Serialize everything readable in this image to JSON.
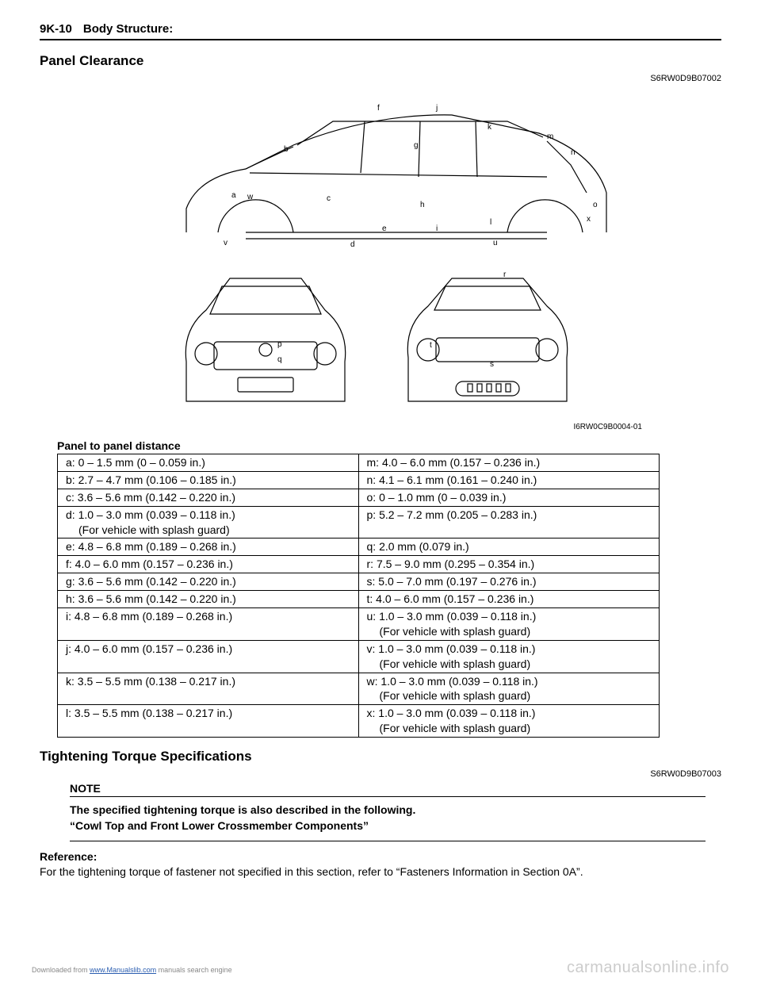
{
  "header": {
    "page_code": "9K-10",
    "section": "Body Structure:"
  },
  "section_title": "Panel Clearance",
  "ref_code_1": "S6RW0D9B07002",
  "diagram_id": "I6RW0C9B0004-01",
  "diagram_labels": {
    "side": [
      "a",
      "b",
      "c",
      "d",
      "e",
      "f",
      "g",
      "h",
      "i",
      "j",
      "k",
      "l",
      "m",
      "n",
      "o",
      "u",
      "v",
      "w",
      "x"
    ],
    "front": [
      "p",
      "q"
    ],
    "rear": [
      "r",
      "s",
      "t"
    ]
  },
  "panel_table": {
    "title": "Panel to panel distance",
    "rows": [
      {
        "left": "a: 0 – 1.5 mm (0 – 0.059 in.)",
        "right": "m: 4.0 – 6.0 mm (0.157 – 0.236 in.)"
      },
      {
        "left": "b: 2.7 – 4.7 mm (0.106 – 0.185 in.)",
        "right": "n: 4.1 – 6.1 mm (0.161 – 0.240 in.)"
      },
      {
        "left": "c: 3.6 – 5.6 mm (0.142 – 0.220 in.)",
        "right": "o: 0 – 1.0 mm (0 – 0.039 in.)"
      },
      {
        "left": "d: 1.0 – 3.0 mm (0.039 – 0.118 in.)\n(For vehicle with splash guard)",
        "right": "p: 5.2 – 7.2 mm (0.205 – 0.283 in.)"
      },
      {
        "left": "e: 4.8 – 6.8 mm (0.189 – 0.268 in.)",
        "right": "q: 2.0 mm (0.079 in.)"
      },
      {
        "left": "f: 4.0 – 6.0 mm (0.157 – 0.236 in.)",
        "right": "r: 7.5 – 9.0 mm (0.295 – 0.354 in.)"
      },
      {
        "left": "g: 3.6 – 5.6 mm (0.142 – 0.220 in.)",
        "right": "s: 5.0 – 7.0 mm (0.197 – 0.276 in.)"
      },
      {
        "left": "h: 3.6 – 5.6 mm (0.142 – 0.220 in.)",
        "right": "t: 4.0 – 6.0 mm (0.157 – 0.236 in.)"
      },
      {
        "left": "i: 4.8 – 6.8 mm (0.189 – 0.268 in.)",
        "right": "u: 1.0 – 3.0 mm (0.039 – 0.118 in.)\n(For vehicle with splash guard)"
      },
      {
        "left": "j: 4.0 – 6.0 mm (0.157 – 0.236 in.)",
        "right": "v: 1.0 – 3.0 mm (0.039 – 0.118 in.)\n(For vehicle with splash guard)"
      },
      {
        "left": "k: 3.5 – 5.5 mm (0.138 – 0.217 in.)",
        "right": "w: 1.0 – 3.0 mm (0.039 – 0.118 in.)\n(For vehicle with splash guard)"
      },
      {
        "left": "l: 3.5 – 5.5 mm (0.138 – 0.217 in.)",
        "right": "x: 1.0 – 3.0 mm (0.039 – 0.118 in.)\n(For vehicle with splash guard)"
      }
    ]
  },
  "torque": {
    "title": "Tightening Torque Specifications",
    "code": "S6RW0D9B07003",
    "note_head": "NOTE",
    "note_line1": "The specified tightening torque is also described in the following.",
    "note_line2": "“Cowl Top and Front Lower Crossmember Components”"
  },
  "reference": {
    "head": "Reference:",
    "text": "For the tightening torque of fastener not specified in this section, refer to “Fasteners Information in Section 0A”."
  },
  "footer": {
    "left_pre": "Downloaded from ",
    "left_link": "www.Manualslib.com",
    "left_post": " manuals search engine",
    "brand": "carmanualsonline.info"
  }
}
